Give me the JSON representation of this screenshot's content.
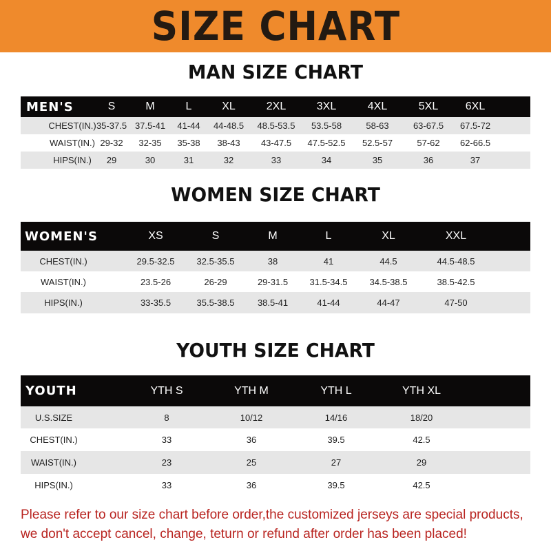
{
  "banner": "SIZE CHART",
  "colors": {
    "banner": "#ef8a2c",
    "header_row": "#0b0909",
    "note": "#b8231f"
  },
  "sections": [
    {
      "title": "MAN SIZE CHART",
      "label": "MEN'S",
      "headers": [
        "S",
        "M",
        "L",
        "XL",
        "2XL",
        "3XL",
        "4XL",
        "5XL",
        "6XL"
      ],
      "rows": [
        {
          "label": "CHEST(IN.)",
          "values": [
            "35-37.5",
            "37.5-41",
            "41-44",
            "44-48.5",
            "48.5-53.5",
            "53.5-58",
            "58-63",
            "63-67.5",
            "67.5-72"
          ]
        },
        {
          "label": "WAIST(IN.)",
          "values": [
            "29-32",
            "32-35",
            "35-38",
            "38-43",
            "43-47.5",
            "47.5-52.5",
            "52.5-57",
            "57-62",
            "62-66.5"
          ]
        },
        {
          "label": "HIPS(IN.)",
          "values": [
            "29",
            "30",
            "31",
            "32",
            "33",
            "34",
            "35",
            "36",
            "37"
          ]
        }
      ]
    },
    {
      "title": "WOMEN SIZE CHART",
      "label": "WOMEN'S",
      "headers": [
        "XS",
        "S",
        "M",
        "L",
        "XL",
        "XXL"
      ],
      "rows": [
        {
          "label": "CHEST(IN.)",
          "values": [
            "29.5-32.5",
            "32.5-35.5",
            "38",
            "41",
            "44.5",
            "44.5-48.5"
          ]
        },
        {
          "label": "WAIST(IN.)",
          "values": [
            "23.5-26",
            "26-29",
            "29-31.5",
            "31.5-34.5",
            "34.5-38.5",
            "38.5-42.5"
          ]
        },
        {
          "label": "HIPS(IN.)",
          "values": [
            "33-35.5",
            "35.5-38.5",
            "38.5-41",
            "41-44",
            "44-47",
            "47-50"
          ]
        }
      ]
    },
    {
      "title": "YOUTH SIZE CHART",
      "label": "YOUTH",
      "headers": [
        "YTH S",
        "YTH M",
        "YTH L",
        "YTH XL"
      ],
      "rows": [
        {
          "label": "U.S.SIZE",
          "values": [
            "8",
            "10/12",
            "14/16",
            "18/20"
          ]
        },
        {
          "label": "CHEST(IN.)",
          "values": [
            "33",
            "36",
            "39.5",
            "42.5"
          ]
        },
        {
          "label": "WAIST(IN.)",
          "values": [
            "23",
            "25",
            "27",
            "29"
          ]
        },
        {
          "label": "HIPS(IN.)",
          "values": [
            "33",
            "36",
            "39.5",
            "42.5"
          ]
        }
      ]
    }
  ],
  "note": [
    "Please refer to our size chart before order,the customized jerseys are special products,",
    "we don't accept cancel, change, teturn or refund after order has been placed!"
  ]
}
